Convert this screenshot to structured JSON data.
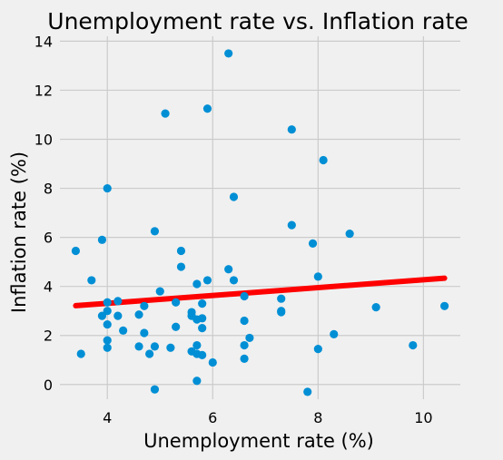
{
  "chart_data": {
    "type": "scatter",
    "title": "Unemployment rate vs. Inflation rate",
    "xlabel": "Unemployment rate (%)",
    "ylabel": "Inflation rate (%)",
    "xlim": [
      3.1,
      10.7
    ],
    "ylim": [
      -0.6,
      14.2
    ],
    "xticks": [
      4,
      6,
      8,
      10
    ],
    "yticks": [
      0,
      2,
      4,
      6,
      8,
      10,
      12,
      14
    ],
    "grid": true,
    "colors": {
      "points": "#008fd5",
      "trend": "#ff0000",
      "background": "#f0f0f0",
      "grid": "#cbcbcb"
    },
    "series": [
      {
        "values": [
          [
            3.4,
            5.45
          ],
          [
            3.5,
            1.25
          ],
          [
            3.7,
            4.25
          ],
          [
            3.9,
            5.9
          ],
          [
            3.9,
            2.8
          ],
          [
            4.0,
            8.0
          ],
          [
            4.0,
            3.35
          ],
          [
            4.0,
            3.0
          ],
          [
            4.0,
            2.45
          ],
          [
            4.0,
            1.8
          ],
          [
            4.0,
            1.5
          ],
          [
            4.2,
            3.4
          ],
          [
            4.2,
            2.8
          ],
          [
            4.3,
            2.2
          ],
          [
            4.6,
            2.85
          ],
          [
            4.6,
            1.55
          ],
          [
            4.7,
            3.2
          ],
          [
            4.7,
            2.1
          ],
          [
            4.8,
            1.25
          ],
          [
            4.9,
            6.25
          ],
          [
            4.9,
            1.55
          ],
          [
            4.9,
            -0.2
          ],
          [
            5.0,
            3.8
          ],
          [
            5.1,
            11.05
          ],
          [
            5.2,
            1.5
          ],
          [
            5.3,
            3.35
          ],
          [
            5.3,
            2.35
          ],
          [
            5.4,
            5.45
          ],
          [
            5.4,
            4.8
          ],
          [
            5.6,
            2.95
          ],
          [
            5.6,
            2.8
          ],
          [
            5.6,
            1.35
          ],
          [
            5.7,
            4.1
          ],
          [
            5.7,
            2.65
          ],
          [
            5.7,
            1.6
          ],
          [
            5.7,
            1.25
          ],
          [
            5.7,
            0.15
          ],
          [
            5.8,
            3.3
          ],
          [
            5.8,
            2.7
          ],
          [
            5.8,
            2.3
          ],
          [
            5.8,
            1.2
          ],
          [
            5.9,
            11.25
          ],
          [
            5.9,
            4.25
          ],
          [
            6.0,
            0.9
          ],
          [
            6.3,
            13.5
          ],
          [
            6.3,
            4.7
          ],
          [
            6.4,
            7.65
          ],
          [
            6.4,
            4.25
          ],
          [
            6.6,
            3.6
          ],
          [
            6.6,
            2.6
          ],
          [
            6.6,
            1.6
          ],
          [
            6.6,
            1.05
          ],
          [
            6.7,
            1.9
          ],
          [
            7.3,
            3.5
          ],
          [
            7.3,
            3.0
          ],
          [
            7.3,
            2.95
          ],
          [
            7.5,
            10.4
          ],
          [
            7.5,
            6.5
          ],
          [
            7.8,
            -0.3
          ],
          [
            7.9,
            5.75
          ],
          [
            8.0,
            4.4
          ],
          [
            8.0,
            1.45
          ],
          [
            8.1,
            9.15
          ],
          [
            8.3,
            2.05
          ],
          [
            8.6,
            6.15
          ],
          [
            9.1,
            3.15
          ],
          [
            9.8,
            1.6
          ],
          [
            10.4,
            3.2
          ]
        ]
      }
    ],
    "trendline": {
      "slope": 0.16,
      "intercept": 2.67,
      "x_range": [
        3.4,
        10.4
      ]
    }
  }
}
